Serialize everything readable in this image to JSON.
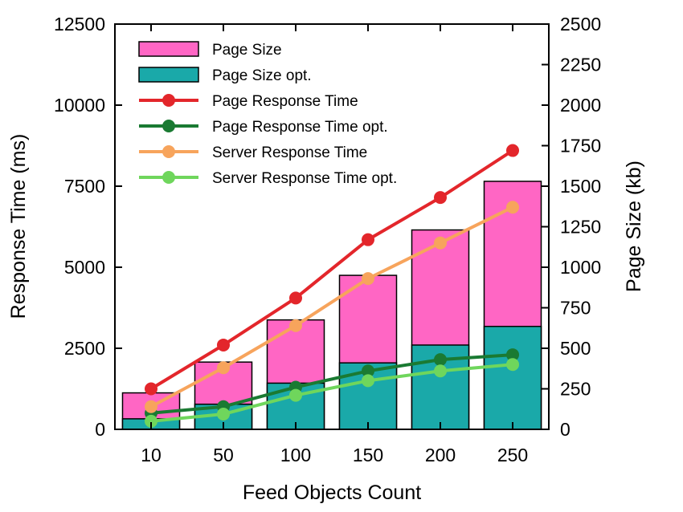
{
  "chart_data": {
    "type": "bar",
    "categories": [
      "10",
      "50",
      "100",
      "150",
      "200",
      "250"
    ],
    "xlabel": "Feed Objects Count",
    "ylabel_left": "Response Time (ms)",
    "ylabel_right": "Page Size (kb)",
    "ylim_left": [
      0,
      12500
    ],
    "ylim_right": [
      0,
      2500
    ],
    "yticks_left": [
      "0",
      "2500",
      "5000",
      "7500",
      "10000",
      "12500"
    ],
    "yticks_right": [
      "0",
      "250",
      "500",
      "750",
      "1000",
      "1250",
      "1500",
      "1750",
      "2000",
      "2250",
      "2500"
    ],
    "legend_position": "top-left",
    "bar_series": [
      {
        "name": "Page Size",
        "axis": "right",
        "color": "#ff66c4",
        "values": [
          225,
          415,
          675,
          950,
          1230,
          1530
        ]
      },
      {
        "name": "Page Size opt.",
        "axis": "right",
        "color": "#1aa9a9",
        "values": [
          65,
          155,
          285,
          410,
          520,
          635
        ]
      }
    ],
    "line_series": [
      {
        "name": "Page Response Time",
        "axis": "left",
        "color": "#e3262b",
        "values": [
          1250,
          2600,
          4050,
          5850,
          7150,
          8600
        ]
      },
      {
        "name": "Page Response Time opt.",
        "axis": "left",
        "color": "#1a7a32",
        "values": [
          500,
          700,
          1300,
          1800,
          2150,
          2300
        ]
      },
      {
        "name": "Server Response Time",
        "axis": "left",
        "color": "#f7a45c",
        "values": [
          700,
          1900,
          3200,
          4650,
          5750,
          6850
        ]
      },
      {
        "name": "Server Response Time opt.",
        "axis": "left",
        "color": "#6fd65c",
        "values": [
          250,
          470,
          1050,
          1500,
          1800,
          2000
        ]
      }
    ]
  }
}
